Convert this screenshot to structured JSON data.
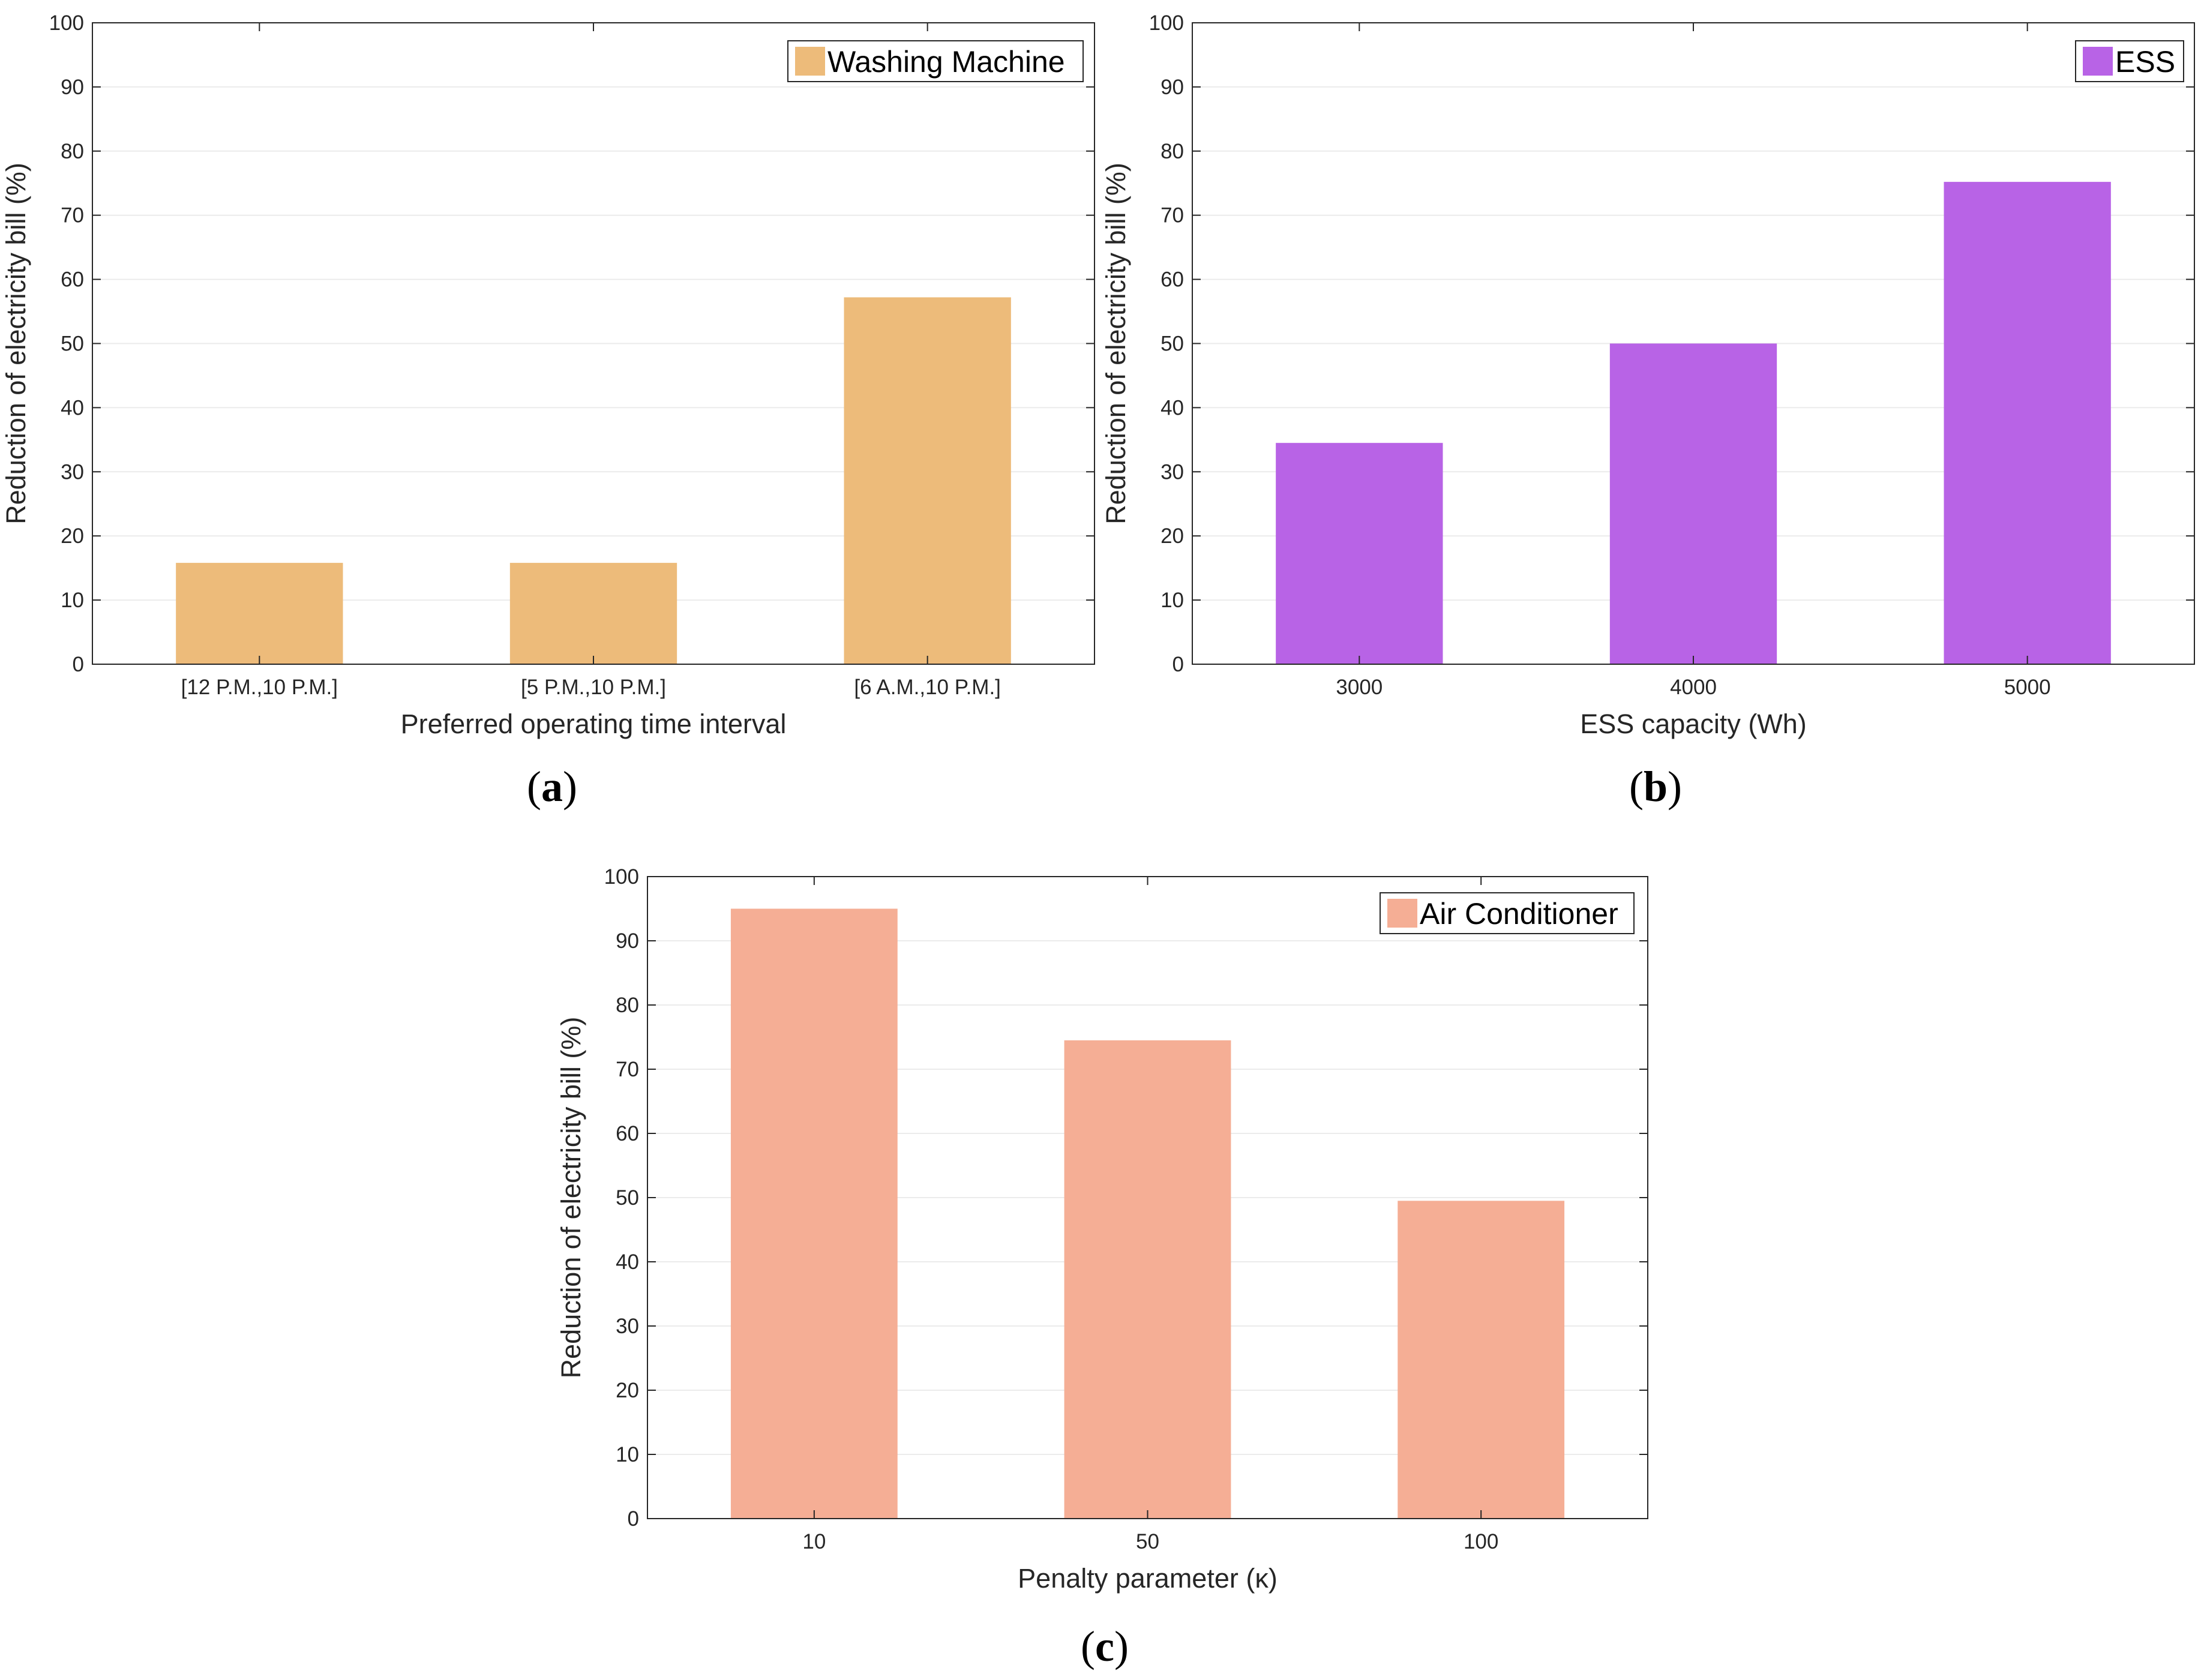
{
  "chart_data": [
    {
      "type": "bar",
      "panel_label": "a",
      "categories": [
        "[12 P.M.,10 P.M.]",
        "[5 P.M.,10 P.M.]",
        "[6 A.M.,10 P.M.]"
      ],
      "series": [
        {
          "name": "Washing Machine",
          "values": [
            15.8,
            15.8,
            57.2
          ],
          "color": "#EDBB7A"
        }
      ],
      "xlabel": "Preferred operating time interval",
      "ylabel": "Reduction of electricity bill (%)",
      "ylim": [
        0,
        100
      ],
      "yticks": [
        0,
        10,
        20,
        30,
        40,
        50,
        60,
        70,
        80,
        90,
        100
      ],
      "grid": true,
      "legend_position": "top-right"
    },
    {
      "type": "bar",
      "panel_label": "b",
      "categories": [
        "3000",
        "4000",
        "5000"
      ],
      "series": [
        {
          "name": "ESS",
          "values": [
            34.5,
            50.0,
            75.2
          ],
          "color": "#B863E6"
        }
      ],
      "xlabel": "ESS capacity (Wh)",
      "ylabel": "Reduction of electricity bill (%)",
      "ylim": [
        0,
        100
      ],
      "yticks": [
        0,
        10,
        20,
        30,
        40,
        50,
        60,
        70,
        80,
        90,
        100
      ],
      "grid": true,
      "legend_position": "top-right"
    },
    {
      "type": "bar",
      "panel_label": "c",
      "categories": [
        "10",
        "50",
        "100"
      ],
      "series": [
        {
          "name": "Air Conditioner",
          "values": [
            95.0,
            74.5,
            49.5
          ],
          "color": "#F5AE95"
        }
      ],
      "xlabel": "Penalty parameter (κ)",
      "ylabel": "Reduction of electricity bill (%)",
      "ylim": [
        0,
        100
      ],
      "yticks": [
        0,
        10,
        20,
        30,
        40,
        50,
        60,
        70,
        80,
        90,
        100
      ],
      "grid": true,
      "legend_position": "top-right"
    }
  ],
  "colors": {
    "axis": "#262626",
    "grid": "#EBEBEB",
    "legend_border": "#262626"
  }
}
